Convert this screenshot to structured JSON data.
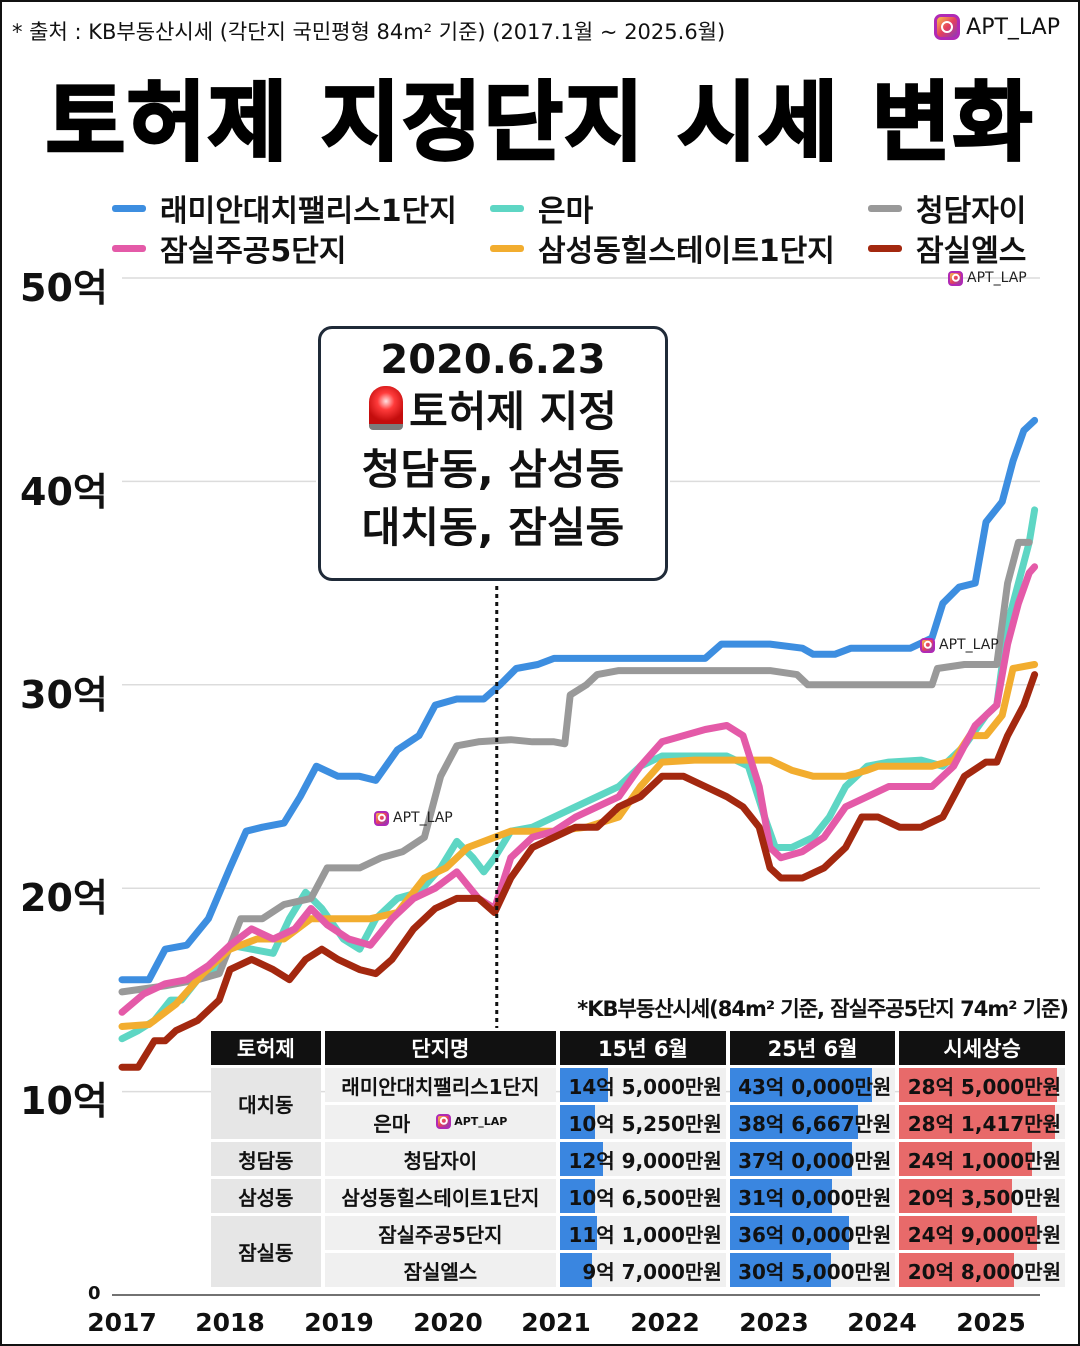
{
  "header": {
    "source": "* 출처 : KB부동산시세 (각단지 국민평형 84m² 기준) (2017.1월 ~ 2025.6월)",
    "brand": "APT_LAP",
    "title": "토허제 지정단지 시세 변화"
  },
  "watermarks": [
    "APT_LAP",
    "APT_LAP",
    "APT_LAP",
    "APT_LAP"
  ],
  "callout": {
    "date": "2020.6.23",
    "line2": "토허제 지정",
    "line3": "청담동, 삼성동",
    "line4": "대치동, 잠실동"
  },
  "note": "*KB부동산시세(84m² 기준, 잠실주공5단지 74m² 기준)",
  "table": {
    "headers": [
      "토허제",
      "단지명",
      "15년 6월",
      "25년 6월",
      "시세상승"
    ],
    "groups": [
      "대치동",
      "청담동",
      "삼성동",
      "잠실동"
    ],
    "rows": [
      {
        "name": "래미안대치팰리스1단지",
        "v1": "14억 5,000만원",
        "v2": "43억 0,000만원",
        "v3": "28억 5,000만원"
      },
      {
        "name": "은마",
        "v1": "10억 5,250만원",
        "v2": "38억 6,667만원",
        "v3": "28억 1,417만원"
      },
      {
        "name": "청담자이",
        "v1": "12억 9,000만원",
        "v2": "37억 0,000만원",
        "v3": "24억 1,000만원"
      },
      {
        "name": "삼성동힐스테이트1단지",
        "v1": "10억 6,500만원",
        "v2": "31억 0,000만원",
        "v3": "20억 3,500만원"
      },
      {
        "name": "잠실주공5단지",
        "v1": "11억 1,000만원",
        "v2": "36억 0,000만원",
        "v3": "24억 9,000만원"
      },
      {
        "name": "잠실엘스",
        "v1": "9억 7,000만원",
        "v2": "30억 5,000만원",
        "v3": "20억 8,000만원"
      }
    ],
    "colors": {
      "blue": "#3a86e0",
      "red": "#e86a6a"
    }
  },
  "chart_data": {
    "type": "line",
    "y_tick_labels": [
      "0",
      "10억",
      "20억",
      "30억",
      "40억",
      "50억"
    ],
    "x_tick_labels": [
      "2017",
      "2018",
      "2019",
      "2020",
      "2021",
      "2022",
      "2023",
      "2024",
      "2025"
    ],
    "ylim": [
      0,
      50
    ],
    "xlim": [
      2017.0,
      2025.5
    ],
    "grid": true,
    "legend": "top",
    "vline": {
      "x": 2020.47,
      "label": "2020.6.23"
    },
    "series": [
      {
        "name": "래미안대치팰리스1단지",
        "color": "#3d8ee0",
        "points": [
          [
            2017.0,
            15.5
          ],
          [
            2017.25,
            15.5
          ],
          [
            2017.4,
            17.0
          ],
          [
            2017.6,
            17.2
          ],
          [
            2017.8,
            18.5
          ],
          [
            2018.0,
            21.0
          ],
          [
            2018.15,
            22.8
          ],
          [
            2018.3,
            23.0
          ],
          [
            2018.5,
            23.2
          ],
          [
            2018.65,
            24.5
          ],
          [
            2018.8,
            26.0
          ],
          [
            2019.0,
            25.5
          ],
          [
            2019.2,
            25.5
          ],
          [
            2019.35,
            25.3
          ],
          [
            2019.55,
            26.8
          ],
          [
            2019.75,
            27.5
          ],
          [
            2019.9,
            29.0
          ],
          [
            2020.1,
            29.3
          ],
          [
            2020.35,
            29.3
          ],
          [
            2020.5,
            30.0
          ],
          [
            2020.65,
            30.8
          ],
          [
            2020.85,
            31.0
          ],
          [
            2021.0,
            31.3
          ],
          [
            2021.5,
            31.3
          ],
          [
            2022.0,
            31.3
          ],
          [
            2022.4,
            31.3
          ],
          [
            2022.55,
            32.0
          ],
          [
            2023.0,
            32.0
          ],
          [
            2023.3,
            31.8
          ],
          [
            2023.4,
            31.5
          ],
          [
            2023.6,
            31.5
          ],
          [
            2023.75,
            31.8
          ],
          [
            2024.0,
            31.8
          ],
          [
            2024.3,
            31.8
          ],
          [
            2024.5,
            32.3
          ],
          [
            2024.6,
            34.0
          ],
          [
            2024.75,
            34.8
          ],
          [
            2024.9,
            35.0
          ],
          [
            2025.0,
            38.0
          ],
          [
            2025.15,
            39.0
          ],
          [
            2025.25,
            41.0
          ],
          [
            2025.35,
            42.5
          ],
          [
            2025.45,
            43.0
          ]
        ]
      },
      {
        "name": "은마",
        "color": "#5ed6c4",
        "points": [
          [
            2017.0,
            12.6
          ],
          [
            2017.15,
            13.0
          ],
          [
            2017.3,
            13.5
          ],
          [
            2017.45,
            14.5
          ],
          [
            2017.55,
            14.5
          ],
          [
            2017.7,
            15.5
          ],
          [
            2017.85,
            16.0
          ],
          [
            2018.0,
            17.2
          ],
          [
            2018.2,
            17.0
          ],
          [
            2018.4,
            16.8
          ],
          [
            2018.55,
            18.5
          ],
          [
            2018.7,
            19.8
          ],
          [
            2018.85,
            19.0
          ],
          [
            2019.05,
            17.5
          ],
          [
            2019.2,
            17.0
          ],
          [
            2019.35,
            18.5
          ],
          [
            2019.55,
            19.5
          ],
          [
            2019.75,
            19.8
          ],
          [
            2019.95,
            21.0
          ],
          [
            2020.1,
            22.3
          ],
          [
            2020.25,
            21.5
          ],
          [
            2020.35,
            20.8
          ],
          [
            2020.45,
            21.5
          ],
          [
            2020.6,
            22.8
          ],
          [
            2020.8,
            23.0
          ],
          [
            2021.0,
            23.5
          ],
          [
            2021.2,
            24.0
          ],
          [
            2021.4,
            24.5
          ],
          [
            2021.6,
            25.0
          ],
          [
            2021.8,
            26.0
          ],
          [
            2022.0,
            26.5
          ],
          [
            2022.3,
            26.5
          ],
          [
            2022.6,
            26.5
          ],
          [
            2022.8,
            26.0
          ],
          [
            2022.95,
            23.5
          ],
          [
            2023.05,
            22.0
          ],
          [
            2023.2,
            22.0
          ],
          [
            2023.4,
            22.5
          ],
          [
            2023.55,
            23.5
          ],
          [
            2023.7,
            25.0
          ],
          [
            2023.9,
            26.0
          ],
          [
            2024.1,
            26.2
          ],
          [
            2024.4,
            26.3
          ],
          [
            2024.6,
            26.0
          ],
          [
            2024.8,
            27.0
          ],
          [
            2025.0,
            28.5
          ],
          [
            2025.1,
            29.0
          ],
          [
            2025.2,
            33.0
          ],
          [
            2025.3,
            35.0
          ],
          [
            2025.4,
            37.0
          ],
          [
            2025.45,
            38.6
          ]
        ]
      },
      {
        "name": "청담자이",
        "color": "#999999",
        "points": [
          [
            2017.0,
            14.9
          ],
          [
            2017.4,
            15.2
          ],
          [
            2017.7,
            15.5
          ],
          [
            2017.9,
            15.8
          ],
          [
            2018.1,
            18.5
          ],
          [
            2018.3,
            18.5
          ],
          [
            2018.5,
            19.2
          ],
          [
            2018.75,
            19.5
          ],
          [
            2018.9,
            21.0
          ],
          [
            2019.2,
            21.0
          ],
          [
            2019.4,
            21.5
          ],
          [
            2019.6,
            21.8
          ],
          [
            2019.8,
            22.5
          ],
          [
            2019.95,
            25.5
          ],
          [
            2020.1,
            27.0
          ],
          [
            2020.3,
            27.2
          ],
          [
            2020.6,
            27.3
          ],
          [
            2020.8,
            27.2
          ],
          [
            2021.0,
            27.2
          ],
          [
            2021.1,
            27.1
          ],
          [
            2021.15,
            29.5
          ],
          [
            2021.3,
            30.0
          ],
          [
            2021.4,
            30.5
          ],
          [
            2021.6,
            30.7
          ],
          [
            2022.0,
            30.7
          ],
          [
            2022.5,
            30.7
          ],
          [
            2023.0,
            30.7
          ],
          [
            2023.25,
            30.5
          ],
          [
            2023.35,
            30.0
          ],
          [
            2023.6,
            30.0
          ],
          [
            2024.0,
            30.0
          ],
          [
            2024.5,
            30.0
          ],
          [
            2024.55,
            30.8
          ],
          [
            2024.8,
            31.0
          ],
          [
            2025.0,
            31.0
          ],
          [
            2025.1,
            31.0
          ],
          [
            2025.2,
            35.0
          ],
          [
            2025.3,
            37.0
          ],
          [
            2025.4,
            37.0
          ]
        ]
      },
      {
        "name": "삼성동힐스테이트1단지",
        "color": "#f2ad2f",
        "points": [
          [
            2017.0,
            13.2
          ],
          [
            2017.25,
            13.3
          ],
          [
            2017.5,
            14.3
          ],
          [
            2017.75,
            15.8
          ],
          [
            2018.0,
            17.0
          ],
          [
            2018.25,
            17.5
          ],
          [
            2018.5,
            17.5
          ],
          [
            2018.75,
            18.5
          ],
          [
            2019.0,
            18.5
          ],
          [
            2019.3,
            18.5
          ],
          [
            2019.55,
            18.8
          ],
          [
            2019.8,
            20.5
          ],
          [
            2020.0,
            21.0
          ],
          [
            2020.2,
            22.0
          ],
          [
            2020.45,
            22.5
          ],
          [
            2020.6,
            22.8
          ],
          [
            2020.8,
            22.8
          ],
          [
            2021.0,
            22.8
          ],
          [
            2021.3,
            23.0
          ],
          [
            2021.6,
            23.5
          ],
          [
            2021.8,
            25.0
          ],
          [
            2022.0,
            26.2
          ],
          [
            2022.3,
            26.3
          ],
          [
            2022.6,
            26.3
          ],
          [
            2022.9,
            26.3
          ],
          [
            2023.0,
            26.3
          ],
          [
            2023.2,
            25.8
          ],
          [
            2023.4,
            25.5
          ],
          [
            2023.7,
            25.5
          ],
          [
            2023.9,
            25.8
          ],
          [
            2024.0,
            26.0
          ],
          [
            2024.5,
            26.0
          ],
          [
            2024.7,
            26.3
          ],
          [
            2024.85,
            27.5
          ],
          [
            2025.0,
            27.5
          ],
          [
            2025.15,
            28.5
          ],
          [
            2025.25,
            30.8
          ],
          [
            2025.45,
            31.0
          ]
        ]
      },
      {
        "name": "잠실주공5단지",
        "color": "#e45aa8",
        "points": [
          [
            2017.0,
            13.9
          ],
          [
            2017.2,
            14.8
          ],
          [
            2017.4,
            15.3
          ],
          [
            2017.6,
            15.5
          ],
          [
            2017.8,
            16.2
          ],
          [
            2018.0,
            17.2
          ],
          [
            2018.2,
            18.0
          ],
          [
            2018.4,
            17.5
          ],
          [
            2018.6,
            18.0
          ],
          [
            2018.75,
            19.0
          ],
          [
            2018.9,
            18.2
          ],
          [
            2019.1,
            17.5
          ],
          [
            2019.3,
            17.2
          ],
          [
            2019.5,
            18.5
          ],
          [
            2019.7,
            19.5
          ],
          [
            2019.9,
            20.0
          ],
          [
            2020.1,
            20.8
          ],
          [
            2020.3,
            19.5
          ],
          [
            2020.45,
            19.0
          ],
          [
            2020.6,
            21.5
          ],
          [
            2020.8,
            22.5
          ],
          [
            2021.0,
            22.8
          ],
          [
            2021.2,
            23.5
          ],
          [
            2021.4,
            24.0
          ],
          [
            2021.6,
            24.5
          ],
          [
            2021.8,
            26.0
          ],
          [
            2022.0,
            27.2
          ],
          [
            2022.2,
            27.5
          ],
          [
            2022.4,
            27.8
          ],
          [
            2022.6,
            28.0
          ],
          [
            2022.75,
            27.5
          ],
          [
            2022.9,
            25.0
          ],
          [
            2023.0,
            22.0
          ],
          [
            2023.1,
            21.5
          ],
          [
            2023.3,
            21.8
          ],
          [
            2023.5,
            22.5
          ],
          [
            2023.7,
            24.0
          ],
          [
            2023.9,
            24.5
          ],
          [
            2024.1,
            25.0
          ],
          [
            2024.3,
            25.0
          ],
          [
            2024.5,
            25.0
          ],
          [
            2024.7,
            26.0
          ],
          [
            2024.9,
            28.0
          ],
          [
            2025.1,
            29.0
          ],
          [
            2025.2,
            32.0
          ],
          [
            2025.3,
            34.0
          ],
          [
            2025.4,
            35.5
          ],
          [
            2025.45,
            35.8
          ]
        ]
      },
      {
        "name": "잠실엘스",
        "color": "#a3280f",
        "points": [
          [
            2017.0,
            11.2
          ],
          [
            2017.15,
            11.2
          ],
          [
            2017.3,
            12.5
          ],
          [
            2017.4,
            12.5
          ],
          [
            2017.5,
            13.0
          ],
          [
            2017.7,
            13.5
          ],
          [
            2017.9,
            14.5
          ],
          [
            2018.0,
            16.0
          ],
          [
            2018.2,
            16.5
          ],
          [
            2018.4,
            16.0
          ],
          [
            2018.55,
            15.5
          ],
          [
            2018.7,
            16.5
          ],
          [
            2018.85,
            17.0
          ],
          [
            2019.0,
            16.5
          ],
          [
            2019.2,
            16.0
          ],
          [
            2019.35,
            15.8
          ],
          [
            2019.5,
            16.5
          ],
          [
            2019.7,
            18.0
          ],
          [
            2019.9,
            19.0
          ],
          [
            2020.1,
            19.5
          ],
          [
            2020.3,
            19.5
          ],
          [
            2020.45,
            18.8
          ],
          [
            2020.6,
            20.5
          ],
          [
            2020.8,
            22.0
          ],
          [
            2021.0,
            22.5
          ],
          [
            2021.2,
            23.0
          ],
          [
            2021.4,
            23.0
          ],
          [
            2021.6,
            24.0
          ],
          [
            2021.8,
            24.5
          ],
          [
            2022.0,
            25.5
          ],
          [
            2022.2,
            25.5
          ],
          [
            2022.4,
            25.0
          ],
          [
            2022.6,
            24.5
          ],
          [
            2022.75,
            24.0
          ],
          [
            2022.9,
            23.0
          ],
          [
            2023.0,
            21.0
          ],
          [
            2023.1,
            20.5
          ],
          [
            2023.3,
            20.5
          ],
          [
            2023.5,
            21.0
          ],
          [
            2023.7,
            22.0
          ],
          [
            2023.85,
            23.5
          ],
          [
            2024.0,
            23.5
          ],
          [
            2024.2,
            23.0
          ],
          [
            2024.4,
            23.0
          ],
          [
            2024.6,
            23.5
          ],
          [
            2024.8,
            25.5
          ],
          [
            2025.0,
            26.2
          ],
          [
            2025.1,
            26.2
          ],
          [
            2025.2,
            27.5
          ],
          [
            2025.35,
            29.0
          ],
          [
            2025.45,
            30.5
          ]
        ]
      }
    ]
  }
}
